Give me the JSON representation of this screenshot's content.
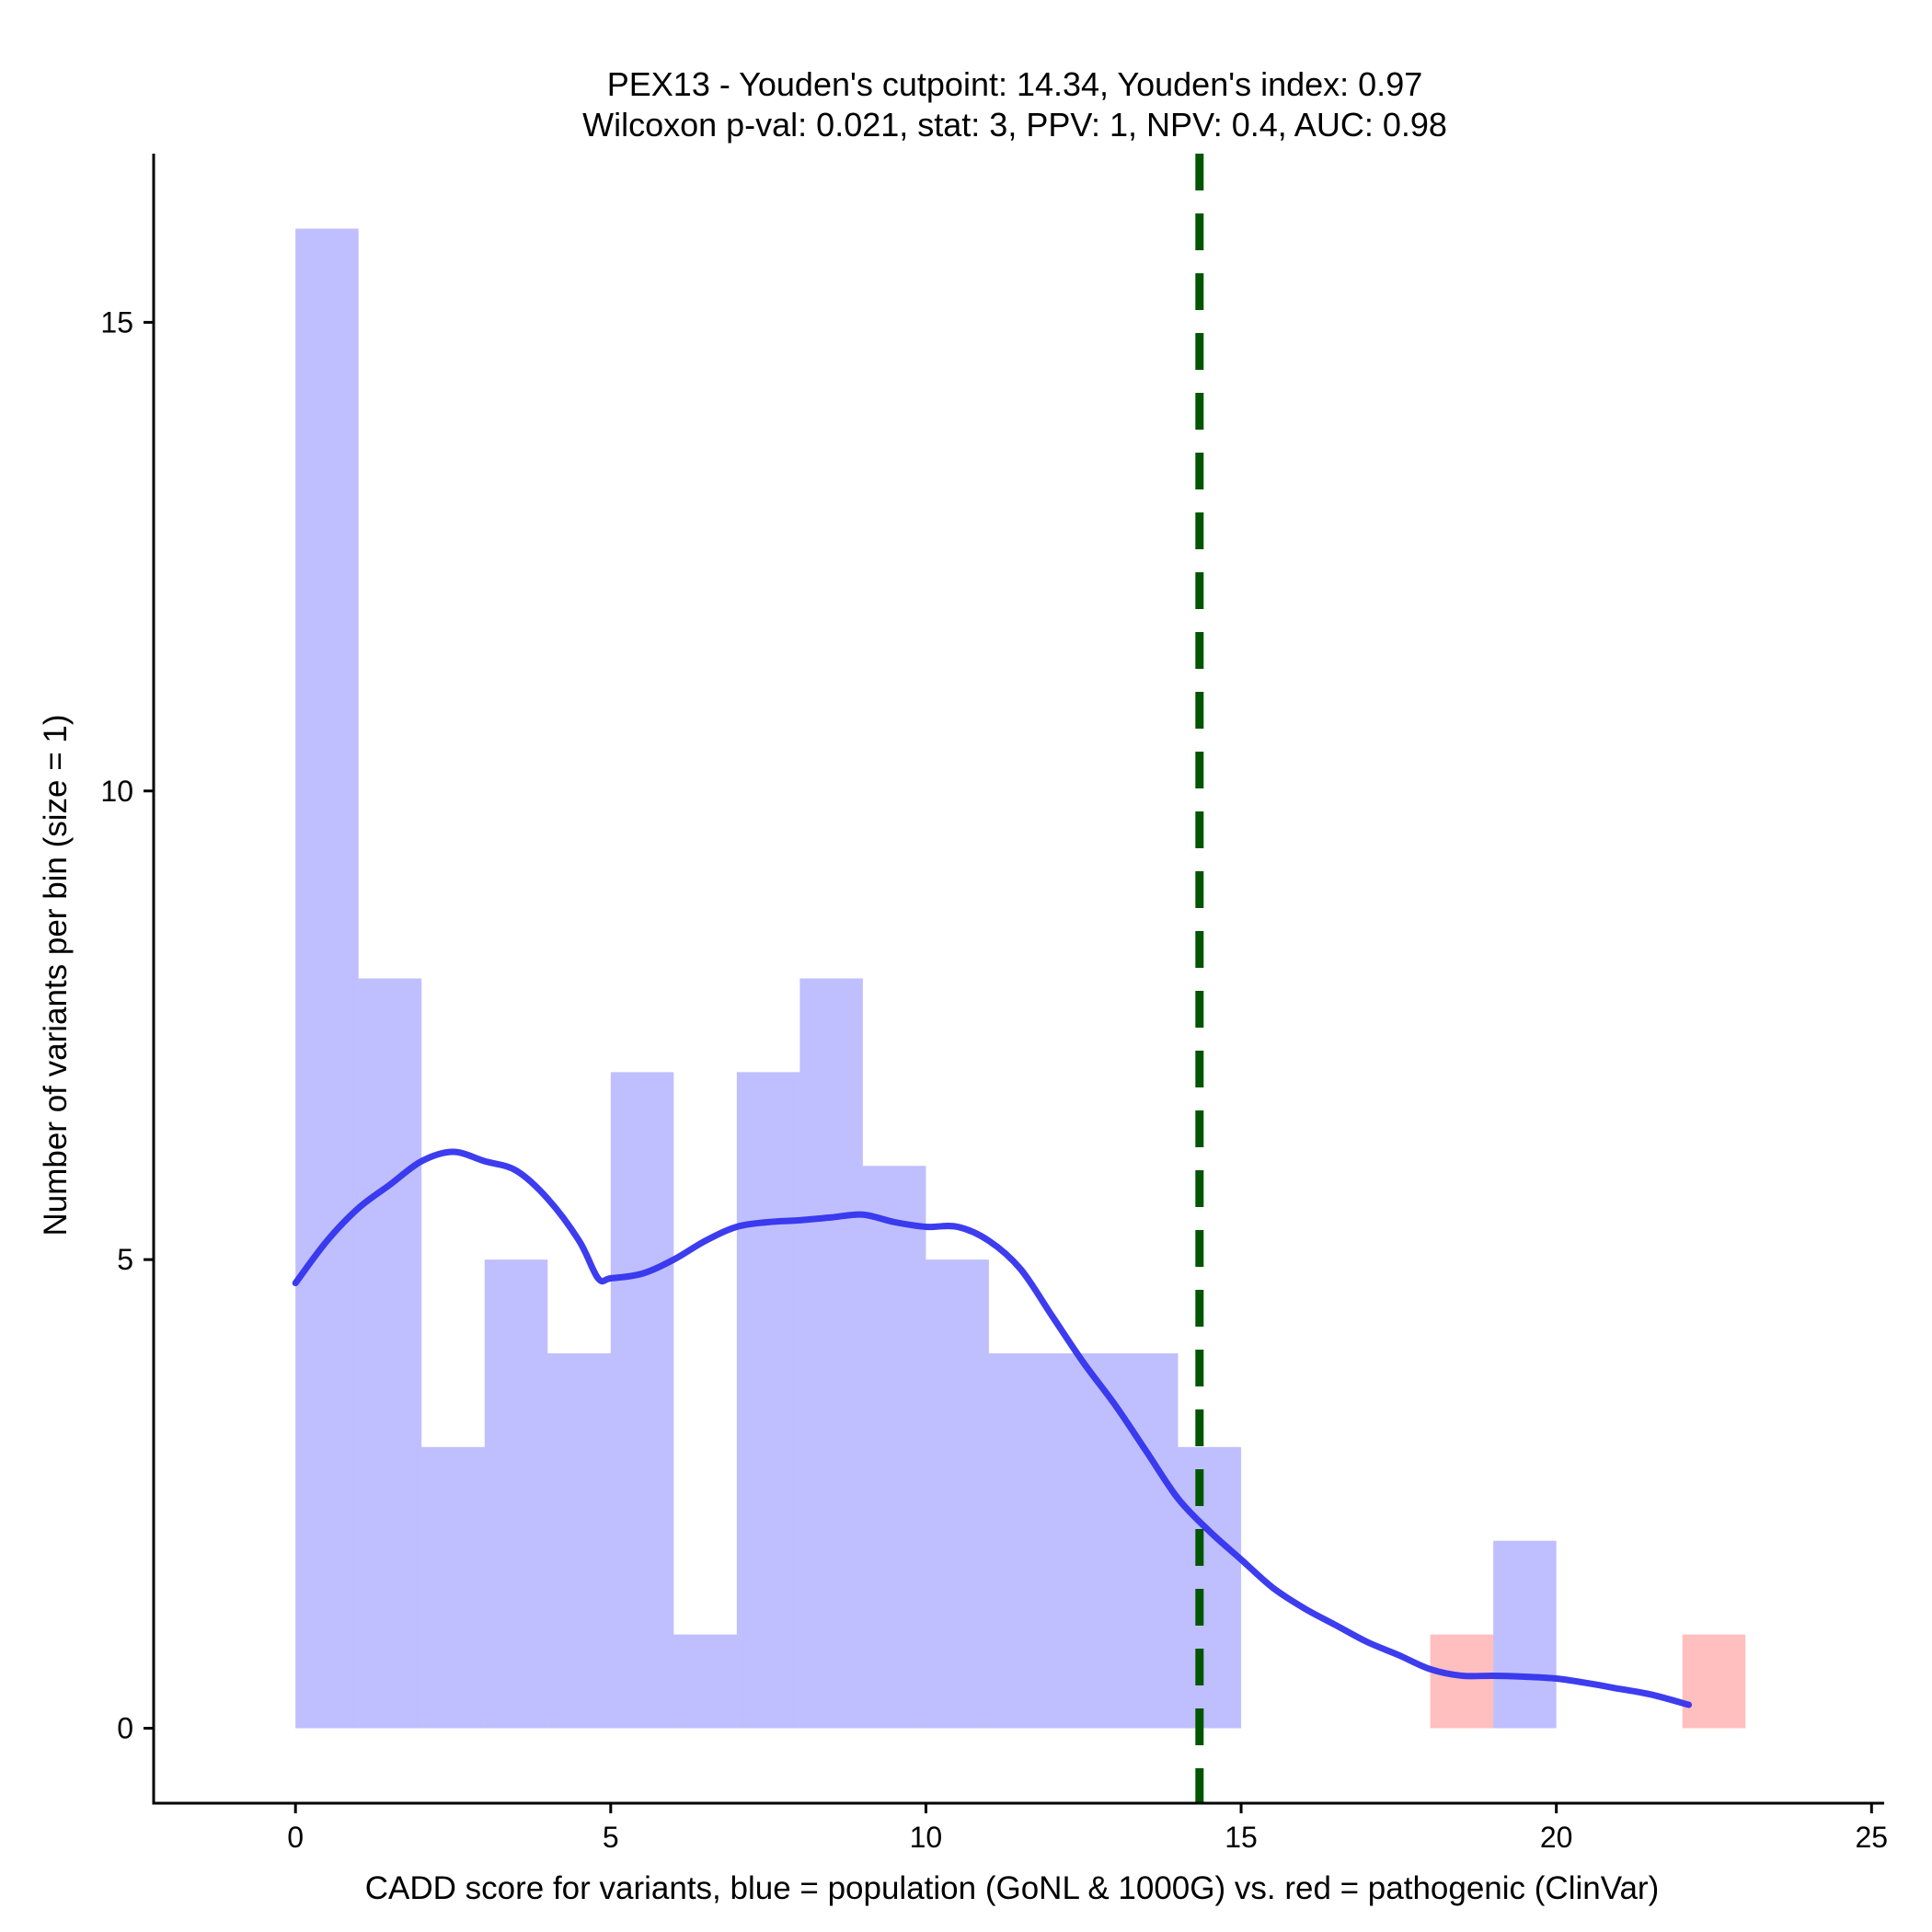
{
  "chart_data": {
    "type": "histogram",
    "title_line1": "PEX13 - Youden's cutpoint: 14.34, Youden's index: 0.97",
    "title_line2": "Wilcoxon p-val: 0.021, stat: 3, PPV: 1, NPV: 0.4, AUC: 0.98",
    "xlabel": "CADD score for variants, blue = population (GoNL & 1000G) vs. red = pathogenic (ClinVar)",
    "ylabel": "Number of variants per bin (size = 1)",
    "xlim": [
      -2.25,
      25.2
    ],
    "ylim": [
      -0.8,
      16.8
    ],
    "x_ticks": [
      0,
      5,
      10,
      15,
      20,
      25
    ],
    "y_ticks": [
      0,
      5,
      10,
      15
    ],
    "bin_width": 1,
    "series": [
      {
        "name": "population (GoNL & 1000G)",
        "color": "#0000ff",
        "opacity": 0.25,
        "bins": [
          {
            "start": 0,
            "count": 16
          },
          {
            "start": 1,
            "count": 8
          },
          {
            "start": 2,
            "count": 3
          },
          {
            "start": 3,
            "count": 5
          },
          {
            "start": 4,
            "count": 4
          },
          {
            "start": 5,
            "count": 7
          },
          {
            "start": 6,
            "count": 1
          },
          {
            "start": 7,
            "count": 7
          },
          {
            "start": 8,
            "count": 8
          },
          {
            "start": 9,
            "count": 6
          },
          {
            "start": 10,
            "count": 5
          },
          {
            "start": 11,
            "count": 4
          },
          {
            "start": 12,
            "count": 4
          },
          {
            "start": 13,
            "count": 4
          },
          {
            "start": 14,
            "count": 3
          },
          {
            "start": 19,
            "count": 2
          }
        ]
      },
      {
        "name": "pathogenic (ClinVar)",
        "color": "#ff0000",
        "opacity": 0.25,
        "bins": [
          {
            "start": 18,
            "count": 1
          },
          {
            "start": 22,
            "count": 1
          }
        ]
      }
    ],
    "density_curve": {
      "name": "population density (scaled)",
      "color": "#3333ee",
      "x": [
        0,
        0.5,
        1,
        1.5,
        2,
        2.5,
        3,
        3.5,
        4,
        4.5,
        4.8,
        5,
        5.5,
        6,
        6.5,
        7,
        7.5,
        8,
        8.5,
        9,
        9.5,
        10,
        10.5,
        11,
        11.5,
        12,
        12.5,
        13,
        13.5,
        14,
        14.5,
        15,
        15.5,
        16,
        16.5,
        17,
        17.5,
        18,
        18.5,
        19,
        19.5,
        20,
        20.5,
        21,
        21.5,
        22.1
      ],
      "y": [
        4.75,
        5.2,
        5.55,
        5.8,
        6.05,
        6.15,
        6.05,
        5.95,
        5.65,
        5.2,
        4.8,
        4.8,
        4.85,
        5.0,
        5.2,
        5.35,
        5.4,
        5.42,
        5.45,
        5.48,
        5.4,
        5.35,
        5.35,
        5.2,
        4.9,
        4.4,
        3.9,
        3.45,
        2.95,
        2.45,
        2.1,
        1.8,
        1.5,
        1.28,
        1.1,
        0.92,
        0.78,
        0.63,
        0.56,
        0.56,
        0.55,
        0.53,
        0.48,
        0.42,
        0.36,
        0.25
      ]
    },
    "cutpoint": {
      "x": 14.34,
      "color": "#005500",
      "style": "dashed",
      "label": "Youden's cutpoint"
    }
  }
}
